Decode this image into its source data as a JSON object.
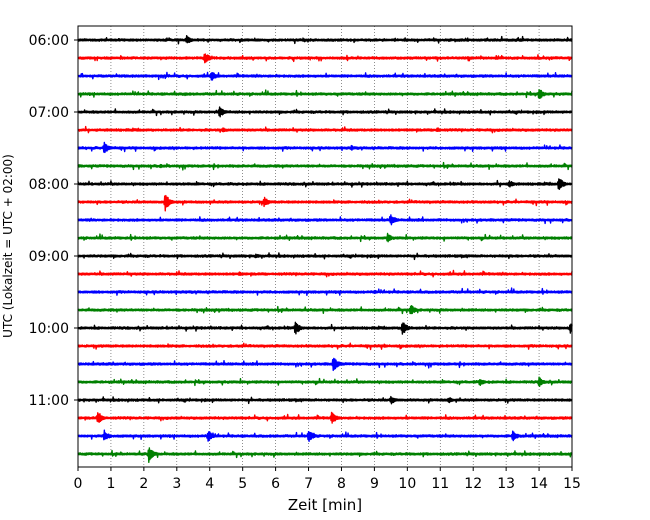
{
  "chart_data": {
    "type": "line",
    "title": "",
    "xlabel": "Zeit  [min]",
    "ylabel": "UTC (Lokalzeit = UTC + 02:00)",
    "xlim": [
      0,
      15
    ],
    "x_ticks": [
      "0",
      "1",
      "2",
      "3",
      "4",
      "5",
      "6",
      "7",
      "8",
      "9",
      "10",
      "11",
      "12",
      "13",
      "14",
      "15"
    ],
    "y_ticks": [
      "06:00",
      "07:00",
      "08:00",
      "09:00",
      "10:00",
      "11:00"
    ],
    "grid": {
      "vertical_minute_lines": true
    },
    "trace_colors": [
      "#000000",
      "#ff0000",
      "#0000ff",
      "#008000"
    ],
    "traces": [
      {
        "start": "06:00",
        "events": [
          {
            "min": 3.3,
            "amp": 0.35
          }
        ]
      },
      {
        "start": "06:15",
        "events": [
          {
            "min": 3.85,
            "amp": 0.45
          }
        ]
      },
      {
        "start": "06:30",
        "events": [
          {
            "min": 4.05,
            "amp": 0.4
          }
        ]
      },
      {
        "start": "06:45",
        "events": [
          {
            "min": 14.0,
            "amp": 0.45
          },
          {
            "min": 3.25,
            "amp": 0.15
          }
        ]
      },
      {
        "start": "07:00",
        "events": [
          {
            "min": 4.3,
            "amp": 0.45
          }
        ]
      },
      {
        "start": "07:15",
        "events": [
          {
            "min": 4.4,
            "amp": 0.2
          },
          {
            "min": 10.9,
            "amp": 0.2
          }
        ]
      },
      {
        "start": "07:30",
        "events": [
          {
            "min": 0.8,
            "amp": 0.5
          },
          {
            "min": 8.3,
            "amp": 0.2
          }
        ]
      },
      {
        "start": "07:45",
        "events": [
          {
            "min": 2.5,
            "amp": 0.15
          }
        ]
      },
      {
        "start": "08:00",
        "events": [
          {
            "min": 14.6,
            "amp": 0.55
          },
          {
            "min": 13.1,
            "amp": 0.3
          }
        ]
      },
      {
        "start": "08:15",
        "events": [
          {
            "min": 2.65,
            "amp": 0.7
          },
          {
            "min": 5.65,
            "amp": 0.4
          }
        ]
      },
      {
        "start": "08:30",
        "events": [
          {
            "min": 9.5,
            "amp": 0.45
          }
        ]
      },
      {
        "start": "08:45",
        "events": [
          {
            "min": 9.4,
            "amp": 0.35
          }
        ]
      },
      {
        "start": "09:00",
        "events": [
          {
            "min": 5.4,
            "amp": 0.2
          }
        ]
      },
      {
        "start": "09:15",
        "events": [
          {
            "min": 4.9,
            "amp": 0.15
          }
        ]
      },
      {
        "start": "09:30",
        "events": [
          {
            "min": 9.0,
            "amp": 0.15
          }
        ]
      },
      {
        "start": "09:45",
        "events": [
          {
            "min": 10.1,
            "amp": 0.45
          }
        ]
      },
      {
        "start": "10:00",
        "events": [
          {
            "min": 6.6,
            "amp": 0.55
          },
          {
            "min": 9.85,
            "amp": 0.6
          },
          {
            "min": 14.95,
            "amp": 0.45
          }
        ]
      },
      {
        "start": "10:15",
        "events": [
          {
            "min": 9.3,
            "amp": 0.15
          }
        ]
      },
      {
        "start": "10:30",
        "events": [
          {
            "min": 7.75,
            "amp": 0.65
          }
        ]
      },
      {
        "start": "10:45",
        "events": [
          {
            "min": 14.0,
            "amp": 0.4
          },
          {
            "min": 12.2,
            "amp": 0.3
          }
        ]
      },
      {
        "start": "11:00",
        "events": [
          {
            "min": 9.5,
            "amp": 0.35
          },
          {
            "min": 11.25,
            "amp": 0.25
          }
        ]
      },
      {
        "start": "11:15",
        "events": [
          {
            "min": 0.6,
            "amp": 0.55
          },
          {
            "min": 7.7,
            "amp": 0.5
          }
        ]
      },
      {
        "start": "11:30",
        "events": [
          {
            "min": 0.8,
            "amp": 0.45
          },
          {
            "min": 3.95,
            "amp": 0.5
          },
          {
            "min": 7.0,
            "amp": 0.55
          },
          {
            "min": 13.2,
            "amp": 0.45
          }
        ]
      },
      {
        "start": "11:45",
        "events": [
          {
            "min": 2.15,
            "amp": 0.65
          }
        ]
      }
    ]
  }
}
